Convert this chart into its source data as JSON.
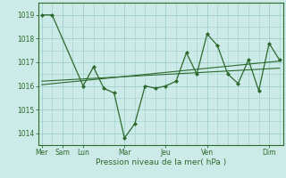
{
  "title": "",
  "xlabel": "Pression niveau de la mer( hPa )",
  "bg_color": "#cceae7",
  "grid_color": "#9ecfcb",
  "line_color": "#2d6a2d",
  "marker_color": "#2d6a2d",
  "ylim": [
    1013.5,
    1019.5
  ],
  "yticks": [
    1014,
    1015,
    1016,
    1017,
    1018,
    1019
  ],
  "day_labels": [
    "Mer",
    "Sam",
    "Lun",
    "Mar",
    "Jeu",
    "Ven",
    "Dim"
  ],
  "day_positions": [
    0,
    12,
    24,
    48,
    72,
    96,
    132
  ],
  "xlim": [
    -2,
    140
  ],
  "main_x": [
    0,
    6,
    24,
    30,
    36,
    42,
    48,
    54,
    60,
    66,
    72,
    78,
    84,
    90,
    96,
    102,
    108,
    114,
    120,
    126,
    132,
    138
  ],
  "main_y": [
    1019.0,
    1019.0,
    1016.0,
    1016.8,
    1015.9,
    1015.7,
    1013.8,
    1014.4,
    1016.0,
    1015.9,
    1016.0,
    1016.2,
    1017.4,
    1016.5,
    1018.2,
    1017.7,
    1016.5,
    1016.1,
    1017.1,
    1015.8,
    1017.8,
    1017.1
  ],
  "trend1_x": [
    0,
    138
  ],
  "trend1_y": [
    1016.05,
    1017.05
  ],
  "trend2_x": [
    0,
    138
  ],
  "trend2_y": [
    1016.2,
    1016.75
  ],
  "figsize": [
    3.2,
    2.0
  ],
  "dpi": 100
}
